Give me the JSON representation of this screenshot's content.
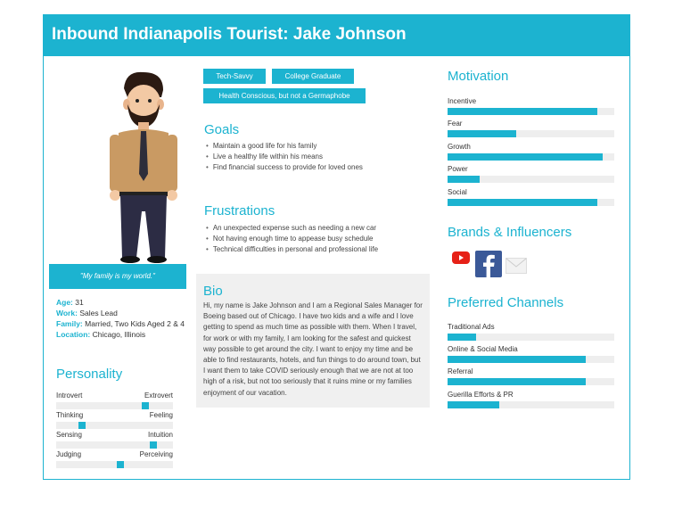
{
  "header": {
    "title": "Inbound Indianapolis Tourist: Jake Johnson"
  },
  "quote": "\"My family is my world.\"",
  "info": {
    "age_label": "Age:",
    "age": "31",
    "work_label": "Work:",
    "work": "Sales Lead",
    "family_label": "Family:",
    "family": "Married, Two Kids Aged 2 & 4",
    "location_label": "Location:",
    "location": "Chicago, Illinois"
  },
  "personality": {
    "title": "Personality",
    "rows": [
      {
        "left": "Introvert",
        "right": "Extrovert",
        "value": 0.78
      },
      {
        "left": "Thinking",
        "right": "Feeling",
        "value": 0.2
      },
      {
        "left": "Sensing",
        "right": "Intuition",
        "value": 0.85
      },
      {
        "left": "Judging",
        "right": "Perceiving",
        "value": 0.55
      }
    ]
  },
  "tags": [
    "Tech-Savvy",
    "College Graduate",
    "Health Conscious, but not a Germaphobe"
  ],
  "goals": {
    "title": "Goals",
    "items": [
      "Maintain a good life for his family",
      "Live a healthy life within his means",
      "Find financial success to provide for loved ones"
    ]
  },
  "frustrations": {
    "title": "Frustrations",
    "items": [
      "An unexpected expense such as needing a new car",
      "Not having enough time to appease busy schedule",
      "Technical difficulties in personal and professional life"
    ]
  },
  "bio": {
    "title": "Bio",
    "text": "Hi, my name is Jake Johnson and I am a Regional Sales Manager for Boeing based out of Chicago. I have two kids and a wife and I love getting to spend as much time as possible with them. When I travel, for work or with my family, I am looking for the safest and quickest way possible to get around the city. I want to enjoy my time and be able to find restaurants, hotels, and fun things to do around town, but I want them to take COVID seriously enough that we are not at too high of a risk, but not too seriously that it ruins mine or my families enjoyment of our vacation."
  },
  "motivation": {
    "title": "Motivation",
    "items": [
      {
        "label": "Incentive",
        "value": 0.9
      },
      {
        "label": "Fear",
        "value": 0.41
      },
      {
        "label": "Growth",
        "value": 0.93
      },
      {
        "label": "Power",
        "value": 0.19
      },
      {
        "label": "Social",
        "value": 0.9
      }
    ]
  },
  "brands": {
    "title": "Brands & Influencers",
    "icons": [
      "youtube-icon",
      "facebook-icon",
      "email-icon"
    ]
  },
  "channels": {
    "title": "Preferred Channels",
    "items": [
      {
        "label": "Traditional Ads",
        "value": 0.17
      },
      {
        "label": "Online & Social Media",
        "value": 0.83
      },
      {
        "label": "Referral",
        "value": 0.83
      },
      {
        "label": "Guerilla Efforts & PR",
        "value": 0.31
      }
    ]
  },
  "colors": {
    "accent": "#1cb3d0",
    "track": "#eeeeee"
  }
}
